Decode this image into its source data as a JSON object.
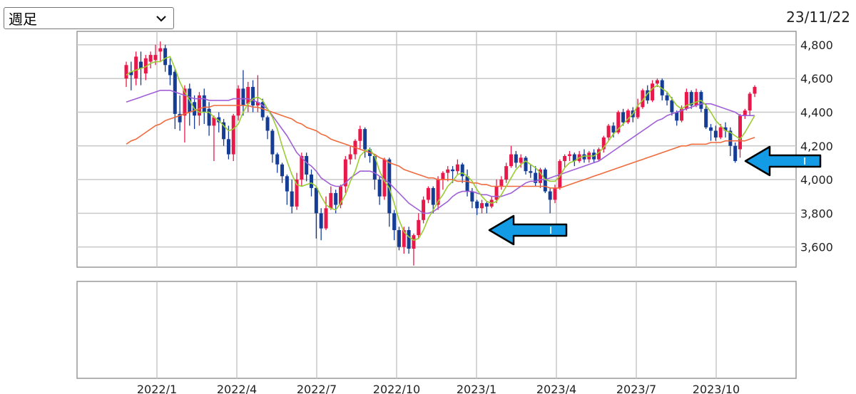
{
  "controls": {
    "period_select": {
      "value": "週足",
      "icon": "chevron-down-icon"
    },
    "date": "23/11/22"
  },
  "colors": {
    "up": "#e8194a",
    "down": "#153d96",
    "ma_short": "#9acd32",
    "ma_mid": "#a05fd6",
    "ma_long": "#f06a3c",
    "arrow": "#139be6"
  },
  "chart_data": {
    "type": "candlestick",
    "ylim": [
      3480,
      4880
    ],
    "yticks": [
      {
        "v": 3600,
        "label": "3,600"
      },
      {
        "v": 3800,
        "label": "3,800"
      },
      {
        "v": 4000,
        "label": "4,000"
      },
      {
        "v": 4200,
        "label": "4,200"
      },
      {
        "v": 4400,
        "label": "4,400"
      },
      {
        "v": 4600,
        "label": "4,600"
      },
      {
        "v": 4800,
        "label": "4,800"
      }
    ],
    "xticks": [
      "2022/1",
      "2022/4",
      "2022/7",
      "2022/10",
      "2023/1",
      "2023/4",
      "2023/7",
      "2023/10"
    ],
    "candles": [
      [
        4600,
        4680,
        4550,
        4700
      ],
      [
        4640,
        4620,
        4530,
        4700
      ],
      [
        4600,
        4730,
        4560,
        4760
      ],
      [
        4700,
        4660,
        4560,
        4760
      ],
      [
        4630,
        4720,
        4590,
        4740
      ],
      [
        4700,
        4740,
        4660,
        4760
      ],
      [
        4710,
        4740,
        4680,
        4800
      ],
      [
        4760,
        4780,
        4700,
        4820
      ],
      [
        4780,
        4680,
        4640,
        4800
      ],
      [
        4680,
        4620,
        4560,
        4720
      ],
      [
        4640,
        4390,
        4300,
        4660
      ],
      [
        4390,
        4340,
        4290,
        4500
      ],
      [
        4380,
        4540,
        4220,
        4560
      ],
      [
        4540,
        4400,
        4320,
        4570
      ],
      [
        4460,
        4380,
        4300,
        4500
      ],
      [
        4380,
        4500,
        4320,
        4520
      ],
      [
        4500,
        4400,
        4330,
        4540
      ],
      [
        4420,
        4320,
        4260,
        4460
      ],
      [
        4320,
        4370,
        4110,
        4380
      ],
      [
        4370,
        4340,
        4280,
        4400
      ],
      [
        4340,
        4240,
        4200,
        4360
      ],
      [
        4240,
        4150,
        4120,
        4320
      ],
      [
        4150,
        4380,
        4110,
        4390
      ],
      [
        4380,
        4540,
        4350,
        4560
      ],
      [
        4540,
        4440,
        4380,
        4650
      ],
      [
        4450,
        4550,
        4400,
        4580
      ],
      [
        4550,
        4440,
        4400,
        4590
      ],
      [
        4440,
        4460,
        4400,
        4620
      ],
      [
        4460,
        4370,
        4350,
        4480
      ],
      [
        4370,
        4290,
        4240,
        4380
      ],
      [
        4290,
        4150,
        4100,
        4300
      ],
      [
        4150,
        4090,
        4040,
        4160
      ],
      [
        4090,
        4020,
        3980,
        4100
      ],
      [
        4020,
        3930,
        3850,
        4030
      ],
      [
        3930,
        3840,
        3800,
        4000
      ],
      [
        3840,
        4000,
        3820,
        4040
      ],
      [
        4000,
        4140,
        3960,
        4160
      ],
      [
        4140,
        4030,
        3990,
        4160
      ],
      [
        4030,
        3950,
        3900,
        4060
      ],
      [
        3950,
        3800,
        3650,
        3960
      ],
      [
        3800,
        3710,
        3640,
        3830
      ],
      [
        3710,
        3830,
        3700,
        3900
      ],
      [
        3830,
        3920,
        3820,
        3960
      ],
      [
        3920,
        3850,
        3800,
        3940
      ],
      [
        3850,
        3960,
        3830,
        3970
      ],
      [
        3960,
        4120,
        3920,
        4140
      ],
      [
        4120,
        4150,
        4090,
        4200
      ],
      [
        4150,
        4230,
        4120,
        4240
      ],
      [
        4230,
        4300,
        4180,
        4320
      ],
      [
        4300,
        4180,
        4130,
        4310
      ],
      [
        4180,
        4140,
        4100,
        4190
      ],
      [
        4140,
        4000,
        3940,
        4150
      ],
      [
        4000,
        3900,
        3850,
        4020
      ],
      [
        3900,
        4120,
        3880,
        4130
      ],
      [
        4120,
        3800,
        3720,
        4130
      ],
      [
        3800,
        3700,
        3640,
        3820
      ],
      [
        3700,
        3600,
        3580,
        3720
      ],
      [
        3600,
        3700,
        3560,
        3720
      ],
      [
        3700,
        3590,
        3560,
        3720
      ],
      [
        3590,
        3670,
        3490,
        3680
      ],
      [
        3670,
        3760,
        3650,
        3800
      ],
      [
        3760,
        3880,
        3740,
        3900
      ],
      [
        3880,
        3950,
        3860,
        3960
      ],
      [
        3950,
        3850,
        3800,
        3960
      ],
      [
        3850,
        4000,
        3820,
        4020
      ],
      [
        4000,
        4040,
        3940,
        4050
      ],
      [
        4040,
        4060,
        3990,
        4080
      ],
      [
        4060,
        4050,
        3980,
        4080
      ],
      [
        4050,
        4090,
        4030,
        4120
      ],
      [
        4090,
        4020,
        3980,
        4100
      ],
      [
        4020,
        3930,
        3900,
        4060
      ],
      [
        3930,
        3870,
        3830,
        3950
      ],
      [
        3870,
        3830,
        3790,
        3880
      ],
      [
        3830,
        3860,
        3800,
        3880
      ],
      [
        3860,
        3840,
        3800,
        3870
      ],
      [
        3840,
        3880,
        3830,
        3900
      ],
      [
        3880,
        3960,
        3860,
        4000
      ],
      [
        3960,
        4000,
        3940,
        4020
      ],
      [
        4000,
        4080,
        3980,
        4100
      ],
      [
        4080,
        4150,
        4070,
        4200
      ],
      [
        4150,
        4100,
        4070,
        4170
      ],
      [
        4100,
        4130,
        4070,
        4150
      ],
      [
        4130,
        4050,
        4030,
        4140
      ],
      [
        4050,
        4040,
        4010,
        4090
      ],
      [
        4040,
        3980,
        3960,
        4080
      ],
      [
        3980,
        4060,
        3950,
        4070
      ],
      [
        4060,
        3930,
        3920,
        4070
      ],
      [
        3930,
        3880,
        3800,
        3950
      ],
      [
        3880,
        3950,
        3860,
        3970
      ],
      [
        3950,
        4110,
        3940,
        4120
      ],
      [
        4110,
        4140,
        4070,
        4150
      ],
      [
        4140,
        4150,
        4110,
        4170
      ],
      [
        4150,
        4110,
        4080,
        4160
      ],
      [
        4110,
        4150,
        4100,
        4170
      ],
      [
        4150,
        4120,
        4100,
        4180
      ],
      [
        4120,
        4160,
        4100,
        4170
      ],
      [
        4160,
        4120,
        4100,
        4180
      ],
      [
        4120,
        4180,
        4110,
        4190
      ],
      [
        4180,
        4250,
        4160,
        4260
      ],
      [
        4250,
        4320,
        4230,
        4330
      ],
      [
        4320,
        4280,
        4250,
        4340
      ],
      [
        4280,
        4400,
        4270,
        4410
      ],
      [
        4400,
        4340,
        4320,
        4420
      ],
      [
        4340,
        4410,
        4330,
        4420
      ],
      [
        4410,
        4370,
        4340,
        4430
      ],
      [
        4370,
        4430,
        4360,
        4480
      ],
      [
        4430,
        4530,
        4420,
        4540
      ],
      [
        4530,
        4470,
        4450,
        4560
      ],
      [
        4470,
        4570,
        4460,
        4590
      ],
      [
        4570,
        4590,
        4550,
        4600
      ],
      [
        4590,
        4500,
        4470,
        4600
      ],
      [
        4500,
        4470,
        4440,
        4520
      ],
      [
        4470,
        4400,
        4380,
        4490
      ],
      [
        4400,
        4350,
        4320,
        4410
      ],
      [
        4350,
        4420,
        4340,
        4440
      ],
      [
        4420,
        4520,
        4410,
        4540
      ],
      [
        4520,
        4440,
        4420,
        4530
      ],
      [
        4440,
        4520,
        4430,
        4540
      ],
      [
        4520,
        4420,
        4400,
        4530
      ],
      [
        4420,
        4310,
        4300,
        4450
      ],
      [
        4310,
        4290,
        4230,
        4330
      ],
      [
        4290,
        4250,
        4230,
        4320
      ],
      [
        4250,
        4310,
        4240,
        4330
      ],
      [
        4310,
        4290,
        4250,
        4340
      ],
      [
        4290,
        4200,
        4140,
        4310
      ],
      [
        4200,
        4110,
        4100,
        4220
      ],
      [
        4180,
        4380,
        4130,
        4390
      ],
      [
        4380,
        4410,
        4360,
        4420
      ],
      [
        4410,
        4510,
        4380,
        4520
      ],
      [
        4510,
        4550,
        4490,
        4560
      ]
    ],
    "ma_short": [
      4620,
      4640,
      4650,
      4660,
      4670,
      4690,
      4700,
      4700,
      4720,
      4730,
      4660,
      4580,
      4520,
      4470,
      4420,
      4400,
      4400,
      4400,
      4370,
      4350,
      4320,
      4290,
      4300,
      4330,
      4400,
      4450,
      4480,
      4490,
      4470,
      4420,
      4370,
      4300,
      4200,
      4110,
      4030,
      3970,
      3960,
      3970,
      3980,
      3960,
      3900,
      3850,
      3830,
      3820,
      3860,
      3910,
      3990,
      4050,
      4140,
      4170,
      4180,
      4140,
      4050,
      3990,
      3950,
      3860,
      3760,
      3690,
      3660,
      3640,
      3650,
      3700,
      3770,
      3820,
      3870,
      3910,
      3960,
      3990,
      4030,
      4040,
      4020,
      3990,
      3940,
      3900,
      3870,
      3860,
      3870,
      3910,
      3960,
      4010,
      4060,
      4090,
      4110,
      4090,
      4070,
      4040,
      4000,
      3990,
      3990,
      4020,
      4070,
      4100,
      4110,
      4130,
      4140,
      4140,
      4140,
      4160,
      4190,
      4230,
      4270,
      4300,
      4330,
      4360,
      4390,
      4440,
      4470,
      4510,
      4540,
      4560,
      4540,
      4520,
      4480,
      4440,
      4420,
      4440,
      4450,
      4460,
      4470,
      4440,
      4400,
      4350,
      4320,
      4290,
      4280,
      4260,
      4240,
      4280,
      4330,
      4380
    ],
    "ma_mid": [
      4460,
      4470,
      4480,
      4490,
      4500,
      4510,
      4520,
      4530,
      4530,
      4530,
      4520,
      4510,
      4500,
      4490,
      4480,
      4480,
      4480,
      4470,
      4470,
      4470,
      4470,
      4470,
      4480,
      4480,
      4480,
      4480,
      4470,
      4460,
      4440,
      4420,
      4380,
      4340,
      4300,
      4260,
      4210,
      4160,
      4130,
      4100,
      4080,
      4050,
      4010,
      3990,
      3970,
      3960,
      3960,
      3980,
      4010,
      4030,
      4050,
      4050,
      4050,
      4040,
      4020,
      4000,
      3980,
      3950,
      3920,
      3890,
      3860,
      3840,
      3820,
      3800,
      3800,
      3810,
      3830,
      3850,
      3870,
      3900,
      3920,
      3930,
      3930,
      3930,
      3920,
      3910,
      3910,
      3900,
      3900,
      3900,
      3910,
      3920,
      3940,
      3960,
      3980,
      3990,
      3990,
      4000,
      4000,
      4010,
      4020,
      4030,
      4040,
      4050,
      4060,
      4070,
      4080,
      4090,
      4100,
      4110,
      4130,
      4150,
      4170,
      4190,
      4210,
      4230,
      4250,
      4270,
      4290,
      4310,
      4330,
      4350,
      4360,
      4380,
      4390,
      4400,
      4410,
      4420,
      4430,
      4440,
      4450,
      4450,
      4450,
      4440,
      4430,
      4420,
      4410,
      4400,
      4380,
      4380,
      4380,
      4380
    ],
    "ma_long": [
      4210,
      4230,
      4240,
      4260,
      4280,
      4300,
      4320,
      4330,
      4350,
      4360,
      4370,
      4380,
      4390,
      4400,
      4410,
      4420,
      4430,
      4430,
      4440,
      4440,
      4440,
      4440,
      4440,
      4440,
      4440,
      4440,
      4430,
      4430,
      4420,
      4410,
      4400,
      4390,
      4380,
      4370,
      4360,
      4340,
      4330,
      4310,
      4300,
      4290,
      4270,
      4260,
      4240,
      4230,
      4220,
      4210,
      4200,
      4190,
      4180,
      4170,
      4160,
      4150,
      4130,
      4120,
      4100,
      4090,
      4080,
      4060,
      4050,
      4040,
      4030,
      4020,
      4010,
      4010,
      4000,
      4000,
      4000,
      4000,
      3990,
      3990,
      3990,
      3980,
      3980,
      3970,
      3970,
      3960,
      3960,
      3960,
      3960,
      3960,
      3960,
      3960,
      3960,
      3960,
      3960,
      3960,
      3960,
      3950,
      3950,
      3950,
      3960,
      3970,
      3980,
      3990,
      4000,
      4010,
      4020,
      4030,
      4040,
      4050,
      4060,
      4070,
      4080,
      4090,
      4100,
      4110,
      4120,
      4130,
      4140,
      4150,
      4160,
      4170,
      4180,
      4190,
      4200,
      4200,
      4210,
      4210,
      4210,
      4210,
      4220,
      4220,
      4220,
      4230,
      4230,
      4230,
      4230,
      4230,
      4240,
      4250
    ]
  }
}
